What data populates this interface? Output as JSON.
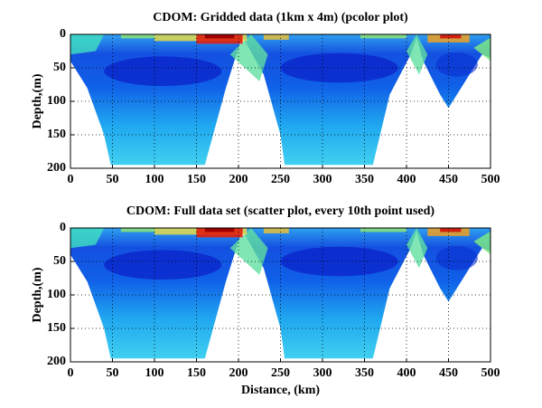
{
  "chart_data": [
    {
      "type": "pcolor",
      "title": "CDOM: Gridded data (1km x 4m) (pcolor plot)",
      "ylabel": "Depth,(m)",
      "xlim": [
        0,
        500
      ],
      "xticks": [
        0,
        50,
        100,
        150,
        200,
        250,
        300,
        350,
        400,
        450,
        500
      ],
      "ylim": [
        200,
        0
      ],
      "yticks": [
        0,
        50,
        100,
        150,
        200
      ],
      "grid": true
    },
    {
      "type": "scatter",
      "title": "CDOM: Full data set (scatter plot, every 10th point used)",
      "ylabel": "Depth,(m)",
      "xlabel": "Distance, (km)",
      "xlim": [
        0,
        500
      ],
      "xticks": [
        0,
        50,
        100,
        150,
        200,
        250,
        300,
        350,
        400,
        450,
        500
      ],
      "ylim": [
        200,
        0
      ],
      "yticks": [
        0,
        50,
        100,
        150,
        200
      ],
      "grid": true
    }
  ]
}
